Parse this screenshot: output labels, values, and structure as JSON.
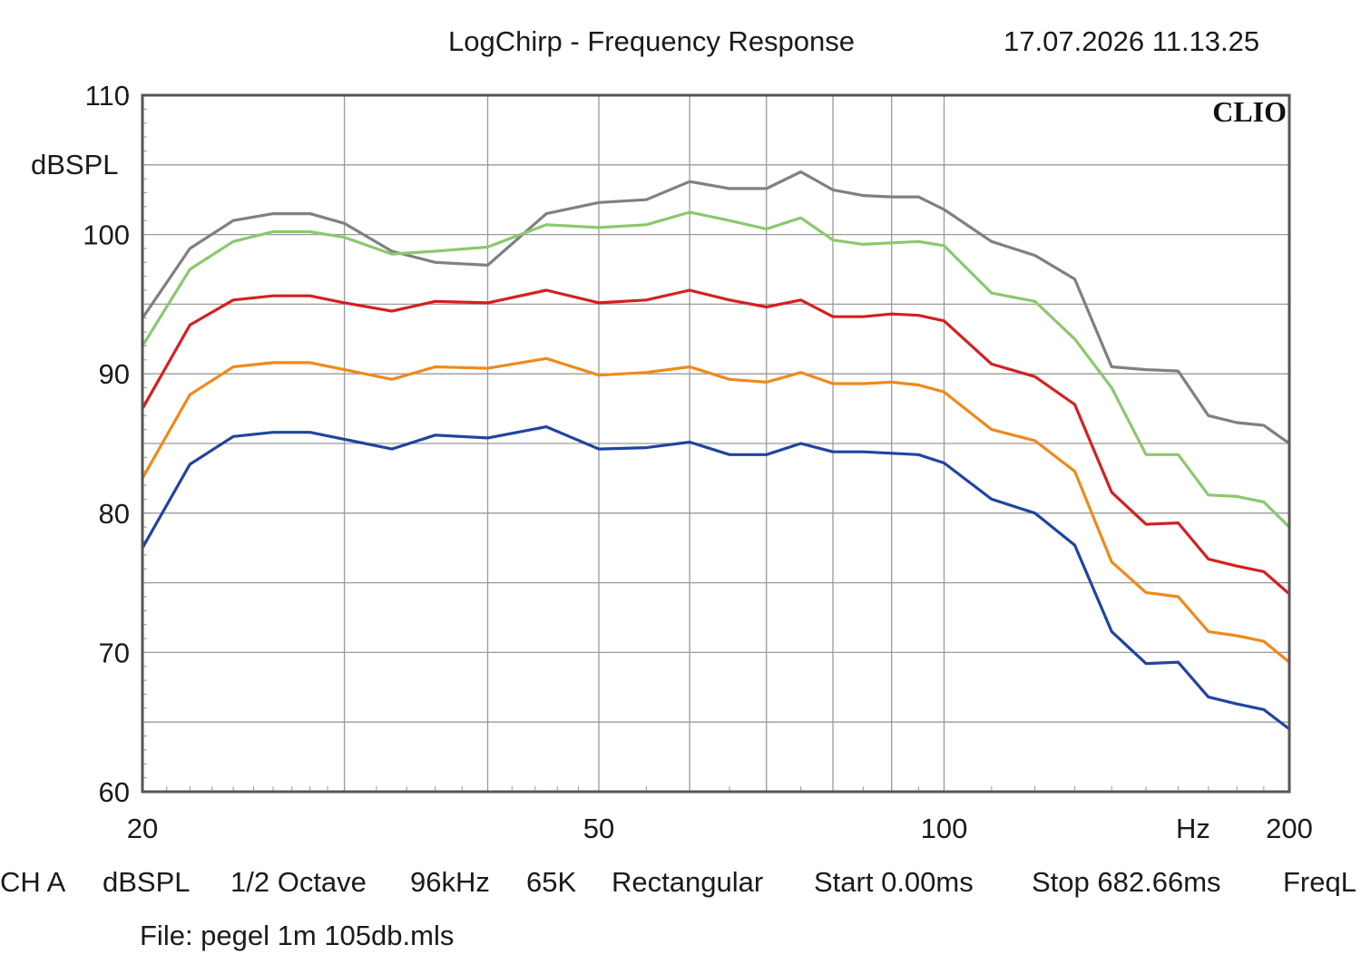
{
  "header": {
    "title": "LogChirp - Frequency Response",
    "timestamp": "17.07.2026 11.13.25"
  },
  "logo": "CLIO",
  "footer": {
    "channel": "CH A",
    "unit": "dBSPL",
    "smoothing": "1/2 Octave",
    "sample_rate": "96kHz",
    "size": "65K",
    "window": "Rectangular",
    "start": "Start 0.00ms",
    "stop": "Stop 682.66ms",
    "freq": "FreqL",
    "file": "File: pegel 1m 105db.mls"
  },
  "chart_data": {
    "type": "line",
    "title": "LogChirp - Frequency Response",
    "xlabel": "Hz",
    "ylabel": "dBSPL",
    "xscale": "log",
    "xlim": [
      20,
      200
    ],
    "ylim": [
      60,
      110
    ],
    "grid": true,
    "x_tick_labels": [
      {
        "value": 20,
        "label": "20"
      },
      {
        "value": 50,
        "label": "50"
      },
      {
        "value": 100,
        "label": "100"
      },
      {
        "value": 200,
        "label": "200"
      }
    ],
    "x_minor_grid": [
      30,
      40,
      60,
      70,
      80,
      90
    ],
    "y_ticks": [
      60,
      70,
      80,
      90,
      100,
      110
    ],
    "y_minor_grid": [
      65,
      75,
      85,
      95,
      105
    ],
    "x": [
      20,
      22,
      24,
      26,
      28,
      30,
      33,
      36,
      40,
      45,
      50,
      55,
      60,
      65,
      70,
      75,
      80,
      85,
      90,
      95,
      100,
      110,
      120,
      130,
      140,
      150,
      160,
      170,
      180,
      190,
      200
    ],
    "series": [
      {
        "color": "#808080",
        "values": [
          94.0,
          99.0,
          101.0,
          101.5,
          101.5,
          100.8,
          98.8,
          98.0,
          97.8,
          101.5,
          102.3,
          102.5,
          103.8,
          103.3,
          103.3,
          104.5,
          103.2,
          102.8,
          102.7,
          102.7,
          101.8,
          99.5,
          98.5,
          96.8,
          90.5,
          90.3,
          90.2,
          87.0,
          86.5,
          86.3,
          85.0
        ]
      },
      {
        "color": "#8cc86e",
        "values": [
          92.0,
          97.5,
          99.5,
          100.2,
          100.2,
          99.8,
          98.6,
          98.8,
          99.1,
          100.7,
          100.5,
          100.7,
          101.6,
          101.0,
          100.4,
          101.2,
          99.6,
          99.3,
          99.4,
          99.5,
          99.2,
          95.8,
          95.2,
          92.5,
          89.0,
          84.2,
          84.2,
          81.3,
          81.2,
          80.8,
          79.0
        ]
      },
      {
        "color": "#d42020",
        "values": [
          87.5,
          93.5,
          95.3,
          95.6,
          95.6,
          95.1,
          94.5,
          95.2,
          95.1,
          96.0,
          95.1,
          95.3,
          96.0,
          95.3,
          94.8,
          95.3,
          94.1,
          94.1,
          94.3,
          94.2,
          93.8,
          90.7,
          89.8,
          87.8,
          81.5,
          79.2,
          79.3,
          76.7,
          76.2,
          75.8,
          74.2
        ]
      },
      {
        "color": "#ee8a1c",
        "values": [
          82.5,
          88.5,
          90.5,
          90.8,
          90.8,
          90.3,
          89.6,
          90.5,
          90.4,
          91.1,
          89.9,
          90.1,
          90.5,
          89.6,
          89.4,
          90.1,
          89.3,
          89.3,
          89.4,
          89.2,
          88.7,
          86.0,
          85.2,
          83.0,
          76.5,
          74.3,
          74.0,
          71.5,
          71.2,
          70.8,
          69.3
        ]
      },
      {
        "color": "#2044a0",
        "values": [
          77.5,
          83.5,
          85.5,
          85.8,
          85.8,
          85.3,
          84.6,
          85.6,
          85.4,
          86.2,
          84.6,
          84.7,
          85.1,
          84.2,
          84.2,
          85.0,
          84.4,
          84.4,
          84.3,
          84.2,
          83.6,
          81.0,
          80.0,
          77.7,
          71.5,
          69.2,
          69.3,
          66.8,
          66.3,
          65.9,
          64.5
        ]
      }
    ]
  },
  "colors": {
    "frame": "#555555",
    "grid": "#9a9a9a",
    "text": "#1a1a1a"
  }
}
